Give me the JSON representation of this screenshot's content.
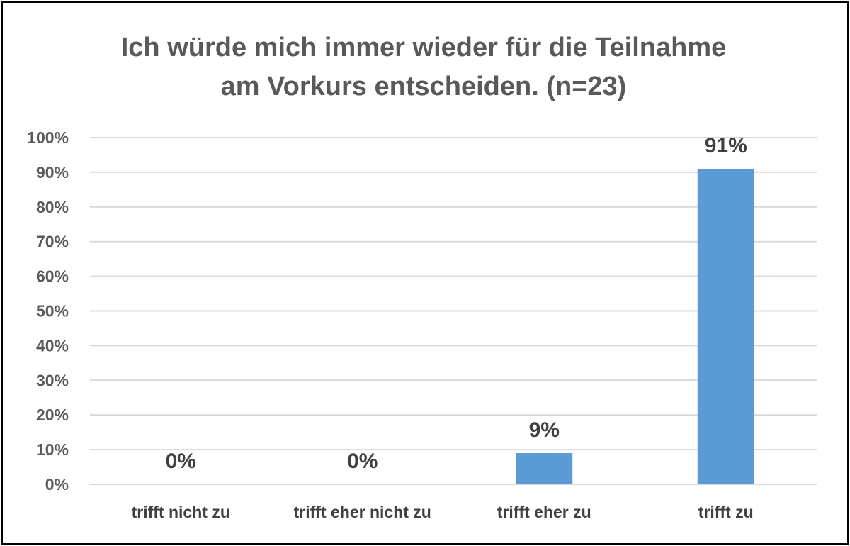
{
  "chart_data": {
    "type": "bar",
    "title_lines": [
      "Ich würde mich immer wieder für die Teilnahme",
      "am Vorkurs entscheiden. (n=23)"
    ],
    "categories": [
      "trifft nicht zu",
      "trifft eher nicht zu",
      "trifft eher zu",
      "trifft zu"
    ],
    "values": [
      0,
      0,
      9,
      91
    ],
    "data_labels": [
      "0%",
      "0%",
      "9%",
      "91%"
    ],
    "y_ticks": [
      "0%",
      "10%",
      "20%",
      "30%",
      "40%",
      "50%",
      "60%",
      "70%",
      "80%",
      "90%",
      "100%"
    ],
    "ylim": [
      0,
      100
    ],
    "grid": true,
    "bar_color": "#5B9BD5",
    "grid_color": "#D9D9D9"
  }
}
